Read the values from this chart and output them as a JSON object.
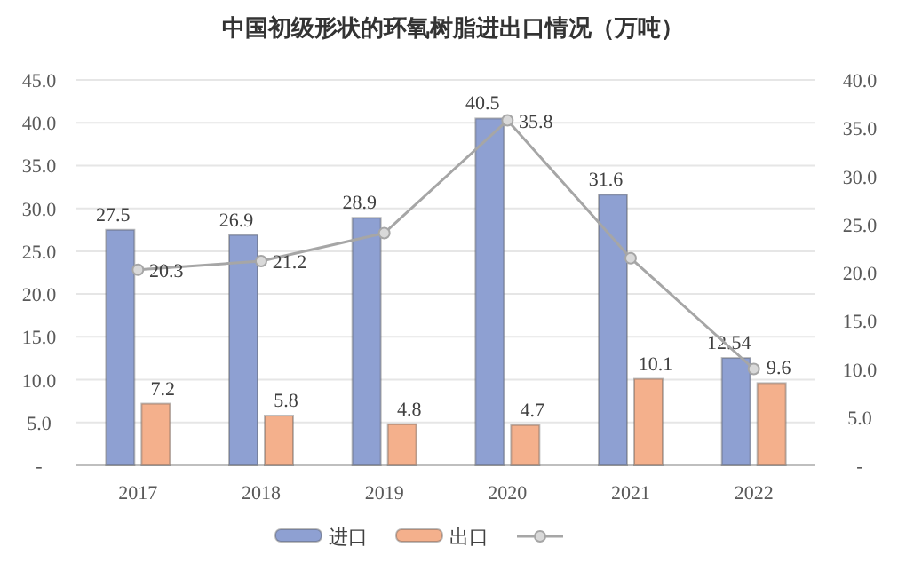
{
  "chart_data": {
    "type": "bar",
    "title": "中国初级形状的环氧树脂进出口情况（万吨）",
    "categories": [
      "2017",
      "2018",
      "2019",
      "2020",
      "2021",
      "2022"
    ],
    "series": [
      {
        "name": "进口",
        "color": "#8ea0d2",
        "values": [
          27.5,
          26.9,
          28.9,
          40.5,
          31.6,
          12.54
        ],
        "value_labels": [
          "27.5",
          "26.9",
          "28.9",
          "40.5",
          "31.6",
          "12.54"
        ]
      },
      {
        "name": "出口",
        "color": "#f4b08c",
        "values": [
          7.2,
          5.8,
          4.8,
          4.7,
          10.1,
          9.6
        ],
        "value_labels": [
          "7.2",
          "5.8",
          "4.8",
          "4.7",
          "10.1",
          "9.6"
        ]
      },
      {
        "type": "line",
        "axis": "y2",
        "color": "#a6a6a6",
        "marker": "circle",
        "values": [
          20.3,
          21.2,
          24.1,
          35.8,
          21.5,
          10
        ],
        "value_labels": [
          "20.3",
          "21.2",
          null,
          "35.8",
          null,
          null
        ]
      }
    ],
    "ylim": [
      0,
      45
    ],
    "yticks": [
      {
        "value": 0,
        "label": "-"
      },
      {
        "value": 5,
        "label": "5.0"
      },
      {
        "value": 10,
        "label": "10.0"
      },
      {
        "value": 15,
        "label": "15.0"
      },
      {
        "value": 20,
        "label": "20.0"
      },
      {
        "value": 25,
        "label": "25.0"
      },
      {
        "value": 30,
        "label": "30.0"
      },
      {
        "value": 35,
        "label": "35.0"
      },
      {
        "value": 40,
        "label": "40.0"
      },
      {
        "value": 45,
        "label": "45.0"
      }
    ],
    "y2lim": [
      0,
      40
    ],
    "y2ticks": [
      {
        "value": 0,
        "label": "-"
      },
      {
        "value": 5,
        "label": "5.0"
      },
      {
        "value": 10,
        "label": "10.0"
      },
      {
        "value": 15,
        "label": "15.0"
      },
      {
        "value": 20,
        "label": "20.0"
      },
      {
        "value": 25,
        "label": "25.0"
      },
      {
        "value": 30,
        "label": "30.0"
      },
      {
        "value": 35,
        "label": "35.0"
      },
      {
        "value": 40,
        "label": "40.0"
      }
    ],
    "grid": "y",
    "legend": "bottom"
  }
}
